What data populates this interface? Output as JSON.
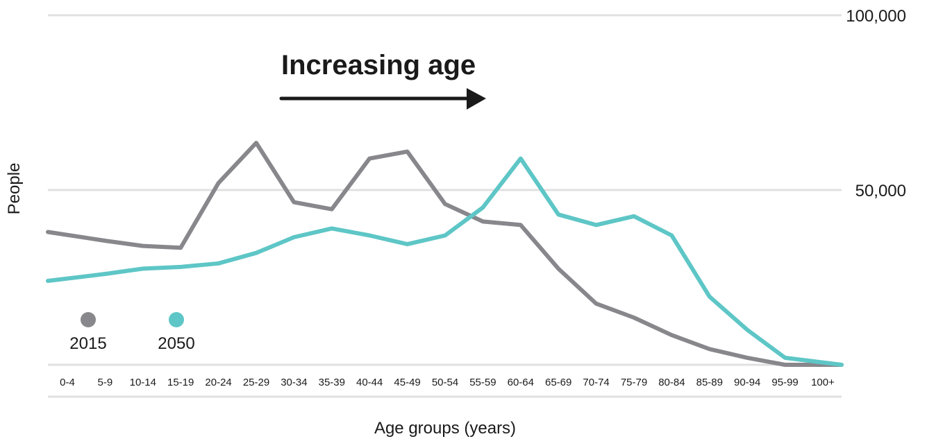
{
  "chart_data": {
    "type": "line",
    "categories": [
      "0-4",
      "5-9",
      "10-14",
      "15-19",
      "20-24",
      "25-29",
      "30-34",
      "35-39",
      "40-44",
      "45-49",
      "50-54",
      "55-59",
      "60-64",
      "65-69",
      "70-74",
      "75-79",
      "80-84",
      "85-89",
      "90-94",
      "95-99",
      "100+"
    ],
    "series": [
      {
        "name": "2015",
        "color": "#87878c",
        "values": [
          38000,
          35500,
          34000,
          33500,
          52000,
          63500,
          46500,
          44500,
          59000,
          61000,
          46000,
          41000,
          40000,
          27500,
          17500,
          13500,
          8500,
          4500,
          2000,
          0,
          0
        ]
      },
      {
        "name": "2050",
        "color": "#5ec6c6",
        "values": [
          24000,
          26000,
          27500,
          28000,
          29000,
          32000,
          36500,
          39000,
          37000,
          34500,
          37000,
          45000,
          59000,
          43000,
          40000,
          42500,
          37000,
          19500,
          10000,
          2000,
          0
        ]
      }
    ],
    "ylabel": "People",
    "xlabel": "Age groups (years)",
    "ylim": [
      0,
      100000
    ],
    "y_ticks": [
      50000,
      100000
    ],
    "y_tick_labels": [
      "50,000",
      "100,000"
    ],
    "grid": true,
    "legend_position": "bottom-left",
    "annotation": "Increasing age",
    "gridline_color": "#e0e0e0"
  }
}
